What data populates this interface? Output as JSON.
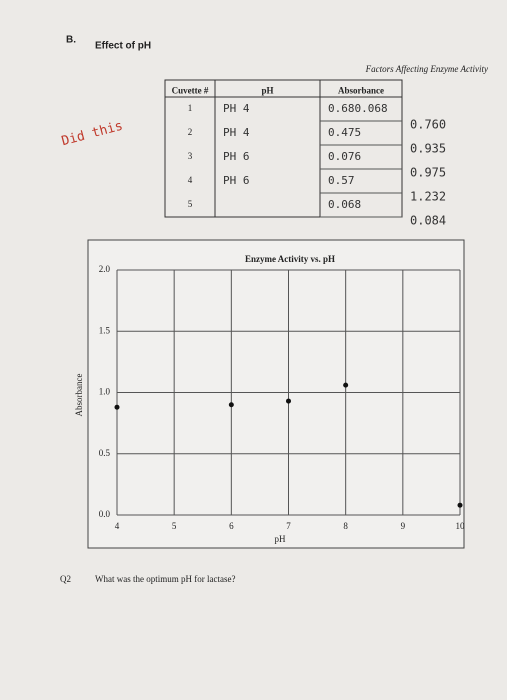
{
  "section": "B.",
  "section_title": "Effect of pH",
  "header": "Factors Affecting Enzyme Activity",
  "margin_note": "Did this",
  "table": {
    "columns": [
      "Cuvette #",
      "pH",
      "Absorbance"
    ],
    "rows": [
      [
        "1",
        "PH 4",
        "0.680.068"
      ],
      [
        "2",
        "PH 4",
        "0.475"
      ],
      [
        "3",
        "PH 6",
        "0.076"
      ],
      [
        "4",
        "PH 6",
        "0.57"
      ],
      [
        "5",
        "",
        "0.068"
      ]
    ]
  },
  "side_values": [
    "0.760",
    "0.935",
    "0.975",
    "1.232",
    "0.084"
  ],
  "chart_data": {
    "type": "scatter",
    "title": "Enzyme Activity vs. pH",
    "x_label": "pH",
    "y_label": "Absorbance",
    "x": [
      4,
      6,
      7,
      8,
      10
    ],
    "values": [
      0.88,
      0.9,
      0.93,
      1.06,
      0.08
    ],
    "color": "#111111",
    "xlim": [
      4,
      10
    ],
    "ylim": [
      0,
      2
    ],
    "grid": true,
    "xticks": [
      4,
      5,
      6,
      7,
      8,
      9,
      10
    ],
    "yticks": [
      {
        "value": 0,
        "label": "0.0"
      },
      {
        "value": 0.5,
        "label": "0.5"
      },
      {
        "value": 1,
        "label": "1.0"
      },
      {
        "value": 1.5,
        "label": "1.5"
      },
      {
        "value": 2,
        "label": "2.0"
      }
    ]
  },
  "question": {
    "number": "Q2",
    "text": "What was the optimum pH for lactase?"
  }
}
